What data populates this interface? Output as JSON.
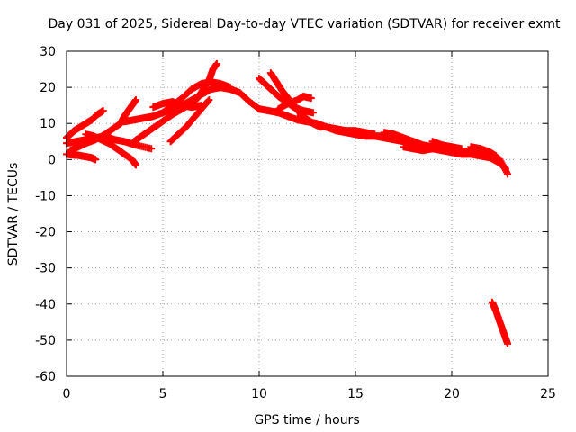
{
  "chart_data": {
    "type": "scatter",
    "title": "Day 031 of 2025, Sidereal Day-to-day VTEC variation (SDTVAR) for receiver exmt",
    "xlabel": "GPS time / hours",
    "ylabel": "SDTVAR / TECUs",
    "xlim": [
      0,
      25
    ],
    "ylim": [
      -60,
      30
    ],
    "xticks": [
      0,
      5,
      10,
      15,
      20,
      25
    ],
    "yticks": [
      -60,
      -50,
      -40,
      -30,
      -20,
      -10,
      0,
      10,
      20,
      30
    ],
    "grid": true,
    "marker": "plus",
    "color": "#ff0000",
    "series": [
      {
        "name": "arc01",
        "points": [
          [
            0.0,
            4.5
          ],
          [
            0.5,
            5.0
          ],
          [
            1.0,
            5.5
          ],
          [
            1.5,
            6.0
          ],
          [
            2.0,
            6.5
          ],
          [
            2.5,
            5.5
          ],
          [
            3.0,
            5.0
          ],
          [
            3.6,
            4.0
          ],
          [
            4.4,
            3.0
          ]
        ]
      },
      {
        "name": "arc02",
        "points": [
          [
            0.0,
            6.0
          ],
          [
            0.2,
            7.0
          ],
          [
            0.4,
            8.0
          ],
          [
            0.7,
            9.0
          ],
          [
            1.0,
            10.0
          ],
          [
            1.3,
            11.0
          ],
          [
            1.6,
            12.5
          ],
          [
            1.9,
            13.5
          ]
        ]
      },
      {
        "name": "arc03",
        "points": [
          [
            0.0,
            1.5
          ],
          [
            0.3,
            1.3
          ],
          [
            0.6,
            1.2
          ],
          [
            1.0,
            0.8
          ],
          [
            1.3,
            0.5
          ],
          [
            1.5,
            0.0
          ]
        ]
      },
      {
        "name": "arc04",
        "points": [
          [
            0.2,
            2.5
          ],
          [
            0.6,
            3.5
          ],
          [
            1.0,
            4.5
          ],
          [
            1.5,
            5.5
          ],
          [
            2.0,
            7.0
          ],
          [
            2.4,
            8.5
          ],
          [
            2.8,
            10.0
          ],
          [
            3.1,
            11.5
          ]
        ]
      },
      {
        "name": "arc05",
        "points": [
          [
            1.0,
            7.0
          ],
          [
            1.4,
            6.5
          ],
          [
            1.8,
            5.5
          ],
          [
            2.2,
            4.5
          ],
          [
            2.6,
            3.0
          ],
          [
            3.0,
            1.5
          ],
          [
            3.4,
            0.0
          ],
          [
            3.6,
            -1.5
          ]
        ]
      },
      {
        "name": "arc06",
        "points": [
          [
            2.8,
            10.0
          ],
          [
            3.0,
            12.0
          ],
          [
            3.2,
            13.5
          ],
          [
            3.4,
            15.0
          ],
          [
            3.6,
            16.5
          ]
        ]
      },
      {
        "name": "arc07",
        "points": [
          [
            3.0,
            10.5
          ],
          [
            3.5,
            11.0
          ],
          [
            4.0,
            11.5
          ],
          [
            4.5,
            12.0
          ],
          [
            5.0,
            13.0
          ],
          [
            5.5,
            14.0
          ],
          [
            6.0,
            15.0
          ],
          [
            6.5,
            16.5
          ],
          [
            7.0,
            18.0
          ],
          [
            7.5,
            19.5
          ],
          [
            8.0,
            20.0
          ],
          [
            8.5,
            19.5
          ],
          [
            9.0,
            18.5
          ],
          [
            9.5,
            16.0
          ],
          [
            10.0,
            14.0
          ],
          [
            10.5,
            13.5
          ],
          [
            11.0,
            13.0
          ],
          [
            11.5,
            12.0
          ],
          [
            12.0,
            11.0
          ],
          [
            12.5,
            10.5
          ],
          [
            13.0,
            10.0
          ],
          [
            13.5,
            9.0
          ],
          [
            14.0,
            8.5
          ],
          [
            14.5,
            8.0
          ],
          [
            15.0,
            7.5
          ],
          [
            15.5,
            7.0
          ],
          [
            16.0,
            6.5
          ],
          [
            16.5,
            6.0
          ],
          [
            17.0,
            5.5
          ],
          [
            17.5,
            5.0
          ],
          [
            18.0,
            4.0
          ],
          [
            18.5,
            3.5
          ],
          [
            19.0,
            3.0
          ],
          [
            19.5,
            2.5
          ],
          [
            20.0,
            2.0
          ],
          [
            20.5,
            1.5
          ],
          [
            21.0,
            1.5
          ],
          [
            21.5,
            1.0
          ],
          [
            22.0,
            0.5
          ],
          [
            22.5,
            -1.0
          ],
          [
            22.8,
            -2.5
          ]
        ]
      },
      {
        "name": "arc08",
        "points": [
          [
            3.5,
            5.0
          ],
          [
            3.9,
            6.5
          ],
          [
            4.3,
            8.0
          ],
          [
            4.7,
            9.5
          ],
          [
            5.1,
            11.0
          ],
          [
            5.5,
            12.5
          ],
          [
            6.0,
            14.0
          ],
          [
            6.5,
            15.5
          ],
          [
            6.8,
            17.0
          ],
          [
            7.1,
            19.5
          ],
          [
            7.4,
            22.0
          ],
          [
            7.6,
            25.0
          ],
          [
            7.8,
            26.5
          ]
        ]
      },
      {
        "name": "arc09",
        "points": [
          [
            5.0,
            13.0
          ],
          [
            5.5,
            15.0
          ],
          [
            6.0,
            17.0
          ],
          [
            6.5,
            19.5
          ],
          [
            7.0,
            21.0
          ],
          [
            7.5,
            21.5
          ],
          [
            8.0,
            21.0
          ],
          [
            8.5,
            20.0
          ]
        ]
      },
      {
        "name": "arc10",
        "points": [
          [
            4.5,
            14.5
          ],
          [
            5.0,
            15.5
          ],
          [
            5.5,
            16.0
          ],
          [
            6.0,
            15.0
          ],
          [
            6.5,
            14.5
          ],
          [
            7.0,
            15.0
          ]
        ]
      },
      {
        "name": "arc11",
        "points": [
          [
            5.4,
            5.0
          ],
          [
            5.8,
            7.0
          ],
          [
            6.2,
            9.0
          ],
          [
            6.6,
            11.5
          ],
          [
            7.0,
            14.0
          ],
          [
            7.4,
            16.5
          ]
        ]
      },
      {
        "name": "arc12",
        "points": [
          [
            10.0,
            22.5
          ],
          [
            10.3,
            21.0
          ],
          [
            10.6,
            19.5
          ],
          [
            11.0,
            17.5
          ],
          [
            11.4,
            16.0
          ],
          [
            11.8,
            14.5
          ],
          [
            12.3,
            13.5
          ],
          [
            12.8,
            13.0
          ]
        ]
      },
      {
        "name": "arc13",
        "points": [
          [
            10.6,
            24.0
          ],
          [
            10.9,
            21.5
          ],
          [
            11.2,
            19.0
          ],
          [
            11.5,
            17.0
          ],
          [
            11.8,
            15.0
          ],
          [
            12.1,
            13.0
          ],
          [
            12.4,
            11.5
          ],
          [
            12.8,
            10.0
          ],
          [
            13.2,
            9.0
          ]
        ]
      },
      {
        "name": "arc14",
        "points": [
          [
            11.0,
            14.0
          ],
          [
            11.5,
            15.5
          ],
          [
            12.0,
            16.5
          ],
          [
            12.3,
            17.5
          ],
          [
            12.7,
            17.0
          ]
        ]
      },
      {
        "name": "arc15",
        "points": [
          [
            12.0,
            11.5
          ],
          [
            12.5,
            11.0
          ],
          [
            13.0,
            9.5
          ],
          [
            13.5,
            9.0
          ],
          [
            14.0,
            8.0
          ],
          [
            14.5,
            7.5
          ],
          [
            15.0,
            7.0
          ],
          [
            15.5,
            6.5
          ],
          [
            16.0,
            6.5
          ],
          [
            16.5,
            6.5
          ],
          [
            17.0,
            6.0
          ],
          [
            17.5,
            5.5
          ],
          [
            18.0,
            5.0
          ],
          [
            18.5,
            4.0
          ],
          [
            19.0,
            3.5
          ],
          [
            19.5,
            3.0
          ],
          [
            20.0,
            2.5
          ],
          [
            20.5,
            2.0
          ],
          [
            21.0,
            2.5
          ],
          [
            21.5,
            2.0
          ],
          [
            22.0,
            1.0
          ],
          [
            22.5,
            0.0
          ],
          [
            22.9,
            -4.0
          ]
        ]
      },
      {
        "name": "arc16",
        "points": [
          [
            14.0,
            8.0
          ],
          [
            14.5,
            8.0
          ],
          [
            15.0,
            8.0
          ],
          [
            15.5,
            7.5
          ],
          [
            16.0,
            7.0
          ]
        ]
      },
      {
        "name": "arc17",
        "points": [
          [
            16.5,
            7.5
          ],
          [
            17.0,
            7.0
          ],
          [
            17.5,
            6.0
          ],
          [
            18.0,
            5.0
          ],
          [
            18.2,
            4.5
          ]
        ]
      },
      {
        "name": "arc18",
        "points": [
          [
            17.5,
            3.5
          ],
          [
            18.0,
            3.0
          ],
          [
            18.5,
            2.5
          ],
          [
            19.0,
            3.0
          ]
        ]
      },
      {
        "name": "arc19",
        "points": [
          [
            19.0,
            5.0
          ],
          [
            19.5,
            4.0
          ],
          [
            20.0,
            3.5
          ],
          [
            20.5,
            3.0
          ]
        ]
      },
      {
        "name": "arc20",
        "points": [
          [
            21.0,
            3.5
          ],
          [
            21.5,
            3.0
          ],
          [
            22.0,
            2.0
          ],
          [
            22.3,
            1.0
          ]
        ]
      },
      {
        "name": "arc21",
        "points": [
          [
            22.1,
            -39.5
          ],
          [
            22.3,
            -42.0
          ],
          [
            22.5,
            -45.0
          ],
          [
            22.7,
            -48.0
          ],
          [
            22.9,
            -51.0
          ]
        ]
      }
    ]
  }
}
